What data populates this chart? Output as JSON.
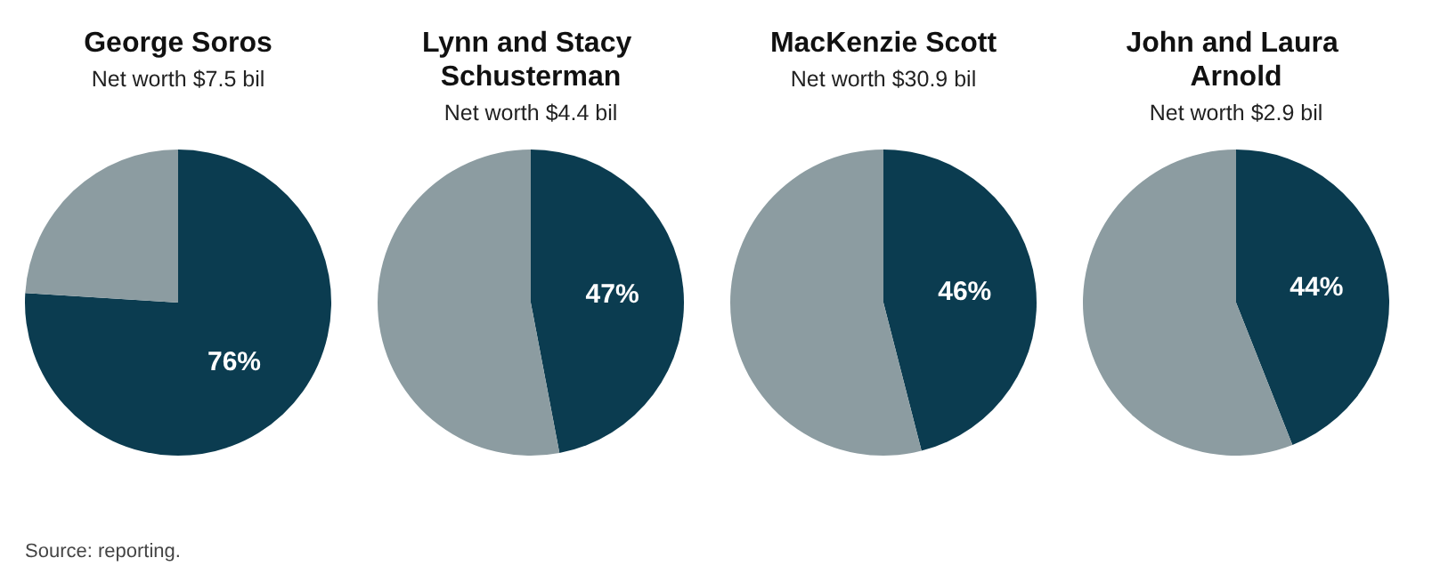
{
  "chart_data": [
    {
      "type": "pie",
      "title": "George Soros",
      "subtitle": "Net worth $7.5 bil",
      "categories": [
        null,
        null
      ],
      "values": [
        76,
        24
      ],
      "colors": [
        "#0b3c50",
        "#8c9ca1"
      ],
      "value_labels": [
        "76%",
        null
      ],
      "annotations": [
        "Source: reporting."
      ]
    },
    {
      "type": "pie",
      "title": "Lynn and Stacy Schusterman",
      "subtitle": "Net worth $4.4 bil",
      "categories": [
        null,
        null
      ],
      "values": [
        47,
        53
      ],
      "colors": [
        "#0b3c50",
        "#8c9ca1"
      ],
      "value_labels": [
        "47%",
        null
      ]
    },
    {
      "type": "pie",
      "title": "MacKenzie Scott",
      "subtitle": "Net worth $30.9 bil",
      "categories": [
        null,
        null
      ],
      "values": [
        46,
        54
      ],
      "colors": [
        "#0b3c50",
        "#8c9ca1"
      ],
      "value_labels": [
        "46%",
        null
      ]
    },
    {
      "type": "pie",
      "title": "John and Laura Arnold",
      "subtitle": "Net worth $2.9 bil",
      "categories": [
        null,
        null
      ],
      "values": [
        44,
        56
      ],
      "colors": [
        "#0b3c50",
        "#8c9ca1"
      ],
      "value_labels": [
        "44%",
        null
      ]
    }
  ]
}
